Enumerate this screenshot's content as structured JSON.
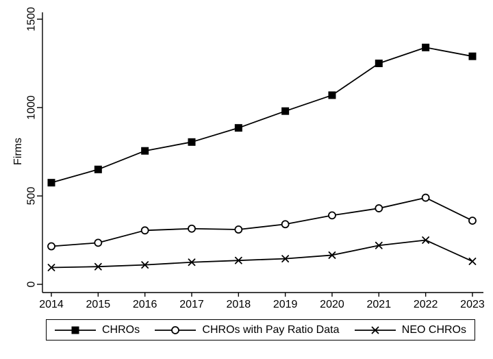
{
  "figure": {
    "background": "#ffffff",
    "axis_color": "#000000",
    "text_color": "#000000"
  },
  "chart_data": {
    "type": "line",
    "title": "",
    "xlabel": "",
    "ylabel": "Firms",
    "x": [
      2014,
      2015,
      2016,
      2017,
      2018,
      2019,
      2020,
      2021,
      2022,
      2023
    ],
    "ylim": [
      0,
      1500
    ],
    "yticks": [
      0,
      500,
      1000,
      1500
    ],
    "grid": false,
    "legend_position": "bottom",
    "series": [
      {
        "name": "CHROs",
        "marker": "filled-square",
        "color": "#000000",
        "values": [
          575,
          650,
          755,
          805,
          885,
          980,
          1070,
          1250,
          1340,
          1290
        ]
      },
      {
        "name": "CHROs with Pay Ratio Data",
        "marker": "open-circle",
        "color": "#000000",
        "values": [
          215,
          235,
          305,
          315,
          310,
          340,
          390,
          430,
          490,
          360
        ]
      },
      {
        "name": "NEO CHROs",
        "marker": "x",
        "color": "#000000",
        "values": [
          95,
          100,
          110,
          125,
          135,
          145,
          165,
          220,
          250,
          130
        ]
      }
    ]
  }
}
